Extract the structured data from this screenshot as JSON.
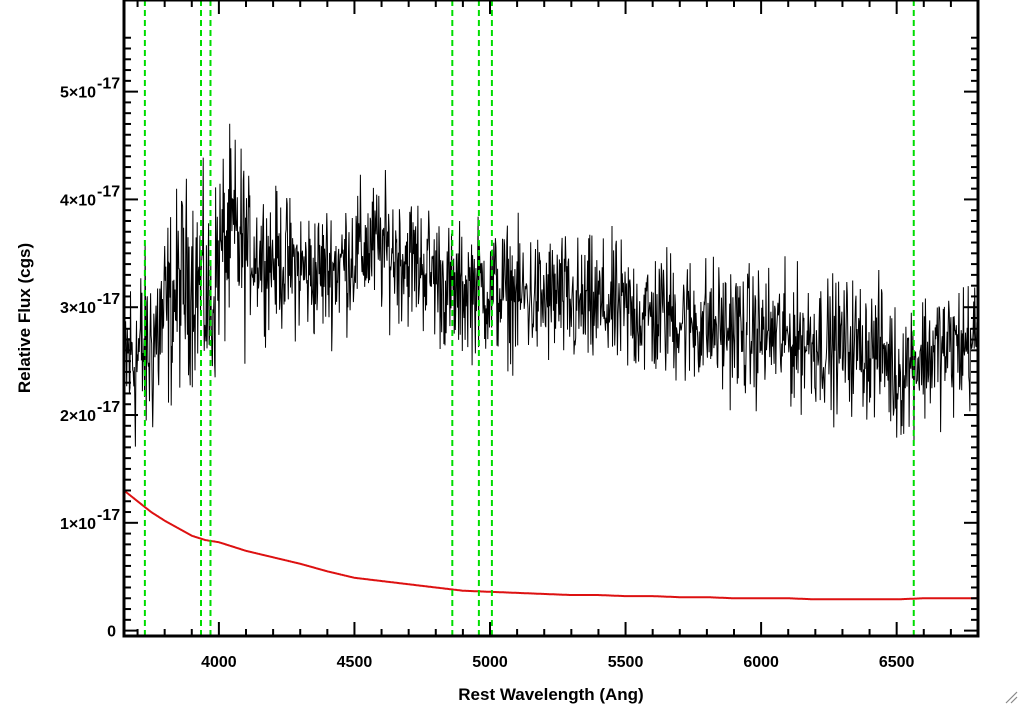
{
  "chart_data": {
    "type": "line",
    "title": "",
    "xlabel": "Rest Wavelength (Ang)",
    "ylabel": "Relative Flux (cgs)",
    "xlim": [
      3650,
      6800
    ],
    "ylim": [
      -5e-19,
      5.85e-17
    ],
    "x_ticks": [
      {
        "value": 4000,
        "label": "4000"
      },
      {
        "value": 4500,
        "label": "4500"
      },
      {
        "value": 5000,
        "label": "5000"
      },
      {
        "value": 5500,
        "label": "5500"
      },
      {
        "value": 6000,
        "label": "6000"
      },
      {
        "value": 6500,
        "label": "6500"
      }
    ],
    "y_ticks": [
      {
        "value": 0,
        "label": "0",
        "exp": ""
      },
      {
        "value": 1e-17,
        "label": "1×10",
        "exp": "-17"
      },
      {
        "value": 2e-17,
        "label": "2×10",
        "exp": "-17"
      },
      {
        "value": 3e-17,
        "label": "3×10",
        "exp": "-17"
      },
      {
        "value": 4e-17,
        "label": "4×10",
        "exp": "-17"
      },
      {
        "value": 5e-17,
        "label": "5×10",
        "exp": "-17"
      }
    ],
    "colors": {
      "spectrum": "#000000",
      "error": "#dd1111",
      "lines": "#00dd00",
      "axes": "#000000"
    },
    "grid": false,
    "series": [
      {
        "role": "spectrum",
        "x": [
          3650,
          3700,
          3740,
          3780,
          3820,
          3860,
          3900,
          3940,
          3970,
          4000,
          4050,
          4100,
          4150,
          4200,
          4250,
          4300,
          4350,
          4400,
          4450,
          4500,
          4550,
          4600,
          4650,
          4700,
          4750,
          4800,
          4850,
          4870,
          4900,
          4950,
          5000,
          5050,
          5100,
          5150,
          5200,
          5250,
          5300,
          5350,
          5400,
          5450,
          5500,
          5550,
          5600,
          5650,
          5700,
          5750,
          5800,
          5850,
          5900,
          5950,
          6000,
          6050,
          6100,
          6150,
          6200,
          6250,
          6300,
          6350,
          6400,
          6450,
          6500,
          6550,
          6600,
          6650,
          6700,
          6750,
          6800
        ],
        "y": [
          2.5e-17,
          2.55e-17,
          2.6e-17,
          2.8e-17,
          3e-17,
          3.2e-17,
          3.3e-17,
          3.2e-17,
          2.9e-17,
          3.5e-17,
          3.65e-17,
          3.55e-17,
          3.5e-17,
          3.45e-17,
          3.4e-17,
          3.35e-17,
          3.3e-17,
          3.35e-17,
          3.4e-17,
          3.5e-17,
          3.55e-17,
          3.55e-17,
          3.5e-17,
          3.45e-17,
          3.4e-17,
          3.3e-17,
          3.15e-17,
          3.1e-17,
          3.15e-17,
          3.2e-17,
          3.15e-17,
          3.15e-17,
          3.1e-17,
          3.1e-17,
          3.05e-17,
          3.1e-17,
          3e-17,
          3e-17,
          3e-17,
          3e-17,
          2.95e-17,
          2.95e-17,
          2.9e-17,
          2.95e-17,
          2.9e-17,
          2.85e-17,
          2.85e-17,
          2.8e-17,
          2.8e-17,
          2.75e-17,
          2.75e-17,
          2.75e-17,
          2.7e-17,
          2.7e-17,
          2.7e-17,
          2.65e-17,
          2.65e-17,
          2.65e-17,
          2.6e-17,
          2.6e-17,
          2.35e-17,
          2.5e-17,
          2.55e-17,
          2.6e-17,
          2.6e-17,
          2.65e-17,
          2.7e-17
        ]
      },
      {
        "role": "error",
        "x": [
          3650,
          3700,
          3750,
          3800,
          3850,
          3900,
          3950,
          4000,
          4050,
          4100,
          4200,
          4300,
          4400,
          4500,
          4600,
          4700,
          4800,
          4900,
          5000,
          5100,
          5200,
          5300,
          5400,
          5500,
          5600,
          5700,
          5800,
          5900,
          6000,
          6100,
          6200,
          6300,
          6400,
          6500,
          6600,
          6700,
          6800
        ],
        "y": [
          1.3e-17,
          1.2e-17,
          1.1e-17,
          1.02e-17,
          9.5e-18,
          8.8e-18,
          8.4e-18,
          8.2e-18,
          7.8e-18,
          7.4e-18,
          6.8e-18,
          6.2e-18,
          5.5e-18,
          4.9e-18,
          4.6e-18,
          4.3e-18,
          4e-18,
          3.7e-18,
          3.6e-18,
          3.5e-18,
          3.4e-18,
          3.3e-18,
          3.3e-18,
          3.2e-18,
          3.2e-18,
          3.1e-18,
          3.1e-18,
          3e-18,
          3e-18,
          3e-18,
          2.9e-18,
          2.9e-18,
          2.9e-18,
          2.9e-18,
          3e-18,
          3e-18,
          3e-18
        ]
      }
    ],
    "line_markers": [
      3727,
      3934,
      3969,
      4861,
      4959,
      5007,
      6563
    ]
  }
}
